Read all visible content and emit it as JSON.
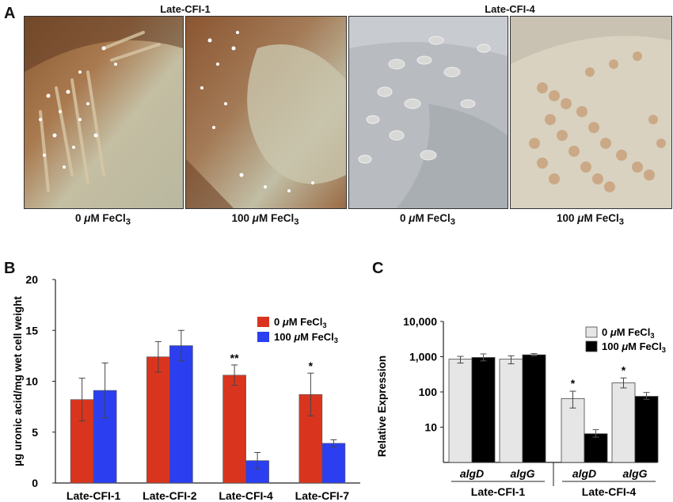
{
  "panel_a": {
    "letter": "A",
    "group_titles": [
      "Late-CFI-1",
      "Late-CFI-4"
    ],
    "photos": [
      {
        "caption_pre": "0 ",
        "caption_mu": "μ",
        "caption_post": "M FeCl",
        "caption_sub": "3",
        "strain": "Late-CFI-1"
      },
      {
        "caption_pre": "100 ",
        "caption_mu": "μ",
        "caption_post": "M FeCl",
        "caption_sub": "3",
        "strain": "Late-CFI-1"
      },
      {
        "caption_pre": "0 ",
        "caption_mu": "μ",
        "caption_post": "M FeCl",
        "caption_sub": "3",
        "strain": "Late-CFI-4"
      },
      {
        "caption_pre": "100 ",
        "caption_mu": "μ",
        "caption_post": "M FeCl",
        "caption_sub": "3",
        "strain": "Late-CFI-4"
      }
    ]
  },
  "chart_data": [
    {
      "panel": "B",
      "type": "bar",
      "ylabel": "µg uronic acid/mg wet cell weight",
      "ylim": [
        0,
        20
      ],
      "yticks": [
        0,
        5,
        10,
        15,
        20
      ],
      "categories": [
        "Late-CFI-1",
        "Late-CFI-2",
        "Late-CFI-4",
        "Late-CFI-7"
      ],
      "series": [
        {
          "name": "0 μM FeCl3",
          "legend_pre": "0 ",
          "legend_mu": "μ",
          "legend_post": "M FeCl",
          "legend_sub": "3",
          "color": "#d9351e",
          "values": [
            8.2,
            12.4,
            10.6,
            8.7
          ],
          "errors": [
            2.1,
            1.5,
            1.0,
            2.1
          ]
        },
        {
          "name": "100 μM FeCl3",
          "legend_pre": "100 ",
          "legend_mu": "μ",
          "legend_post": "M FeCl",
          "legend_sub": "3",
          "color": "#2b3ff0",
          "values": [
            9.1,
            13.5,
            2.2,
            3.9
          ],
          "errors": [
            2.7,
            1.5,
            0.8,
            0.35
          ]
        }
      ],
      "significance": [
        "",
        "",
        "**",
        "*"
      ],
      "legend": "top-right",
      "grid": false
    },
    {
      "panel": "C",
      "type": "bar",
      "ylabel": "Relative Expression",
      "yscale": "log",
      "ylim": [
        1,
        10000
      ],
      "ytick_labels": [
        "10",
        "100",
        "1,000",
        "10,000"
      ],
      "ytick_values": [
        10,
        100,
        1000,
        10000
      ],
      "categories": [
        "algD",
        "algG",
        "algD",
        "algG"
      ],
      "groups": [
        {
          "label": "Late-CFI-1",
          "span": [
            0,
            1
          ]
        },
        {
          "label": "Late-CFI-4",
          "span": [
            2,
            3
          ]
        }
      ],
      "series": [
        {
          "name": "0 μM FeCl3",
          "legend_pre": "0 ",
          "legend_mu": "μ",
          "legend_post": "M FeCl",
          "legend_sub": "3",
          "color": "#e6e6e6",
          "values": [
            850,
            850,
            65,
            180
          ],
          "err_low": [
            660,
            630,
            35,
            130
          ],
          "err_high": [
            1020,
            1060,
            105,
            250
          ]
        },
        {
          "name": "100 μM FeCl3",
          "legend_pre": "100 ",
          "legend_mu": "μ",
          "legend_post": "M FeCl",
          "legend_sub": "3",
          "color": "#000000",
          "values": [
            950,
            1130,
            6.5,
            75
          ],
          "err_low": [
            760,
            1060,
            5.2,
            62
          ],
          "err_high": [
            1200,
            1230,
            8.5,
            97
          ]
        }
      ],
      "significance": [
        "",
        "",
        "*",
        "*"
      ],
      "legend": "right",
      "grid": false
    }
  ]
}
